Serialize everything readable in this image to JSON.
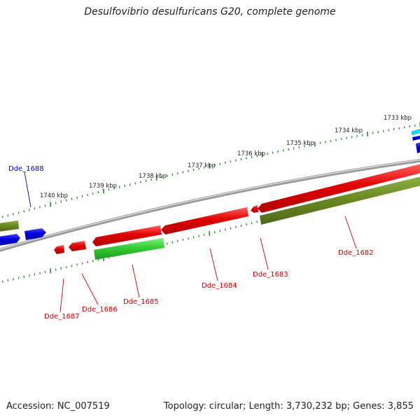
{
  "title": "Desulfovibrio desulfuricans G20, complete genome",
  "footer": {
    "accession": "Accession: NC_007519",
    "summary": "Topology: circular; Length: 3,730,232 bp; Genes: 3,855"
  },
  "colors": {
    "backbone": "#8c8c8c",
    "forward_cds": "#e00000",
    "reverse_cds": "#0000e0",
    "cog_olive": "#6b8a23",
    "cog_green": "#33cc33",
    "cyan": "#00e0ff",
    "tick_green": "#2e8b2e",
    "label_red": "#cc0000",
    "label_blue": "#0000cc"
  },
  "scale_unit": "kbp",
  "scale_ticks": [
    {
      "kbp": 1733,
      "label": "1733 kbp"
    },
    {
      "kbp": 1734,
      "label": "1734 kbp"
    },
    {
      "kbp": 1735,
      "label": "1735 kbp"
    },
    {
      "kbp": 1736,
      "label": "1736 kbp"
    },
    {
      "kbp": 1737,
      "label": "1737 kbp"
    },
    {
      "kbp": 1738,
      "label": "1738 kbp"
    },
    {
      "kbp": 1739,
      "label": "1739 kbp"
    },
    {
      "kbp": 1740,
      "label": "1740 kbp"
    }
  ],
  "gene_labels": [
    {
      "id": "Dde_1682",
      "text": "Dde_1682",
      "strand": "forward"
    },
    {
      "id": "Dde_1683",
      "text": "Dde_1683",
      "strand": "forward"
    },
    {
      "id": "Dde_1684",
      "text": "Dde_1684",
      "strand": "forward"
    },
    {
      "id": "Dde_1685",
      "text": "Dde_1685",
      "strand": "forward"
    },
    {
      "id": "Dde_1686",
      "text": "Dde_1686",
      "strand": "forward"
    },
    {
      "id": "Dde_1687",
      "text": "Dde_1687",
      "strand": "forward"
    },
    {
      "id": "Dde_1688",
      "text": "Dde_1688",
      "strand": "reverse"
    }
  ]
}
